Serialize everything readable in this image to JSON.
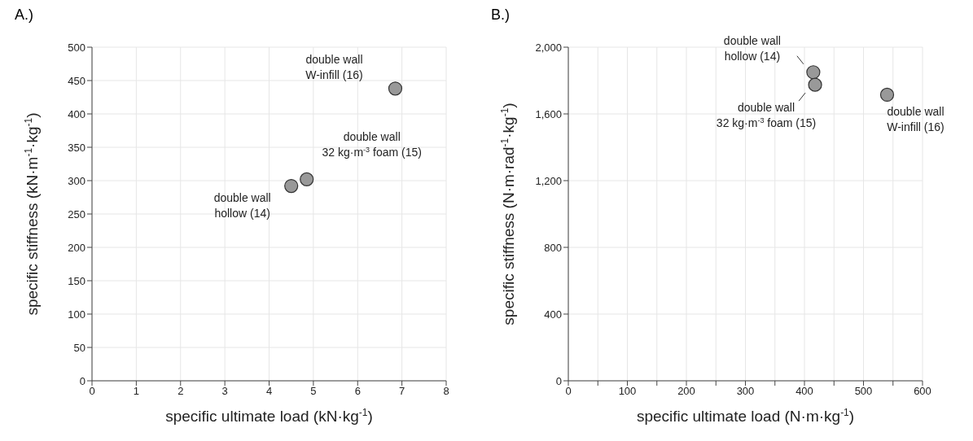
{
  "chart_data": [
    {
      "type": "scatter",
      "title": "A.)",
      "xlabel": "specific ultimate load (kN·kg$^{-1}$)",
      "ylabel": "specific stiffness (kN·m$^{-1}$·kg$^{-1}$)",
      "x": [
        4.5,
        4.85,
        6.85
      ],
      "values": [
        292,
        302,
        438
      ],
      "color": "#999999",
      "marker": "circle",
      "xlim": [
        0,
        8
      ],
      "xticks": [
        0,
        1,
        2,
        3,
        4,
        5,
        6,
        7,
        8
      ],
      "ylim": [
        0,
        500
      ],
      "yticks": [
        0,
        50,
        100,
        150,
        200,
        250,
        300,
        350,
        400,
        450,
        500
      ],
      "grid": true,
      "annotations": [
        {
          "text": "double wall\nhollow (14)",
          "x": 4.5,
          "y": 292
        },
        {
          "text": "double wall\n32 kg·m$^{-3}$ foam (15)",
          "x": 4.85,
          "y": 302
        },
        {
          "text": "double wall\nW-infill (16)",
          "x": 6.85,
          "y": 438
        }
      ]
    },
    {
      "type": "scatter",
      "title": "B.)",
      "xlabel": "specific ultimate load (N·m·kg$^{-1}$)",
      "ylabel": "specific stiffness (N·m·rad$^{-1}$·kg$^{-1}$)",
      "x": [
        415,
        418,
        540
      ],
      "values": [
        1850,
        1775,
        1715
      ],
      "color": "#999999",
      "marker": "circle",
      "xlim": [
        0,
        600
      ],
      "xticks": [
        0,
        {
          "value": 50,
          "label": null
        },
        100,
        {
          "value": 150,
          "label": null
        },
        200,
        {
          "value": 250,
          "label": null
        },
        300,
        {
          "value": 350,
          "label": null
        },
        400,
        {
          "value": 450,
          "label": null
        },
        500,
        {
          "value": 550,
          "label": null
        },
        600
      ],
      "ylim": [
        0,
        2000
      ],
      "yticks": [
        {
          "value": 0,
          "label": "0"
        },
        {
          "value": 400,
          "label": "400"
        },
        {
          "value": 800,
          "label": "800"
        },
        {
          "value": 1200,
          "label": "1,200"
        },
        {
          "value": 1600,
          "label": "1,600"
        },
        {
          "value": 2000,
          "label": "2,000"
        }
      ],
      "grid": true,
      "annotations": [
        {
          "text": "double wall\nhollow (14)",
          "x": 415,
          "y": 1850
        },
        {
          "text": "double wall\n32 kg·m$^{-3}$ foam (15)",
          "x": 418,
          "y": 1775
        },
        {
          "text": "double wall\nW-infill (16)",
          "x": 540,
          "y": 1715
        }
      ]
    }
  ]
}
